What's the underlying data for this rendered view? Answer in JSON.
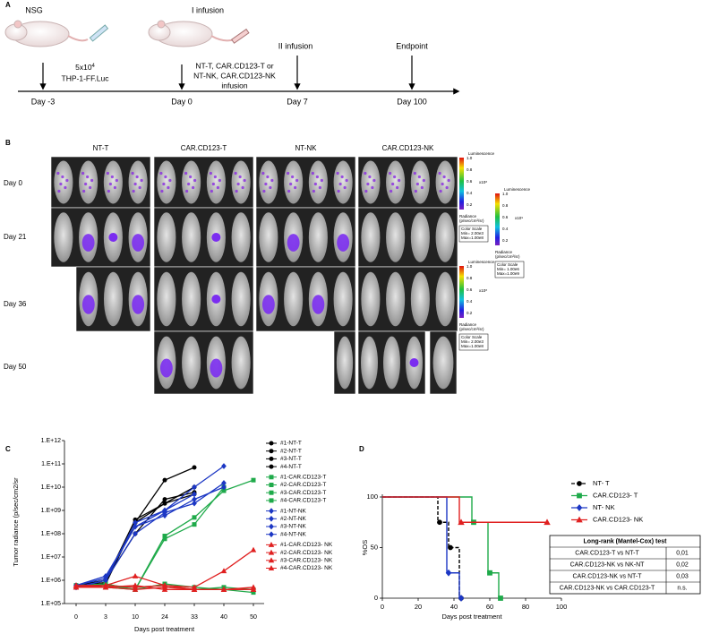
{
  "panel_labels": [
    "A",
    "B",
    "C",
    "D"
  ],
  "timeline": {
    "events": [
      {
        "top": "NSG",
        "day": "Day -3",
        "note": [
          "5x10",
          "4",
          "THP-1-FF.Luc"
        ]
      },
      {
        "top": "I infusion",
        "day": "Day 0",
        "note": [
          "NT-T, CAR.CD123-T or",
          "NT-NK, CAR.CD123-NK",
          "infusion"
        ]
      },
      {
        "top": "II infusion",
        "day": "Day 7"
      },
      {
        "top": "Endpoint",
        "day": "Day 100"
      }
    ]
  },
  "imaging": {
    "columns": [
      "NT-T",
      "CAR.CD123-T",
      "NT-NK",
      "CAR.CD123-NK"
    ],
    "rows": [
      "Day 0",
      "Day 21",
      "Day 36",
      "Day 50"
    ],
    "scales": [
      {
        "title": "Luminescence",
        "ticks": [
          "1.0",
          "0.8",
          "0.6",
          "0.4",
          "0.2"
        ],
        "exp": "x10⁸",
        "unit": [
          "Radiance",
          "(p/sec/cm²/sr)"
        ],
        "box": [
          "Color Scale",
          "Min= 2.00e3",
          "Max=1.00e8"
        ]
      },
      {
        "title": "Luminescence",
        "ticks": [
          "1.0",
          "0.8",
          "0.6",
          "0.4",
          "0.2"
        ],
        "exp": "x10⁹",
        "unit": [
          "Radiance",
          "(p/sec/cm²/sr)"
        ],
        "box": [
          "Color Scale",
          "Min= 1.00e6",
          "Max=1.00e9"
        ]
      },
      {
        "title": "Luminescence",
        "ticks": [
          "1.0",
          "0.8",
          "0.6",
          "0.4",
          "0.2"
        ],
        "exp": "x10⁸",
        "unit": [
          "Radiance",
          "(p/sec/cm²/sr)"
        ],
        "box": [
          "Color Scale",
          "Min= 2.00e3",
          "Max=1.00e8"
        ]
      }
    ]
  },
  "chart_data": [
    {
      "type": "line",
      "ylabel": "Tumor radiance (p/sec/cm2/sr",
      "xlabel": "Days post treatment",
      "categories": [
        "0",
        "3",
        "10",
        "24",
        "33",
        "40",
        "50"
      ],
      "log_y": true,
      "ylim": [
        100000,
        1000000000000
      ],
      "yticks": [
        {
          "value": 1000000000000,
          "label": "1.E+12"
        },
        {
          "value": 100000000000,
          "label": "1.E+11"
        },
        {
          "value": 10000000000,
          "label": "1.E+10"
        },
        {
          "value": 1000000000,
          "label": "1.E+09"
        },
        {
          "value": 100000000,
          "label": "1.E+08"
        },
        {
          "value": 10000000,
          "label": "1.E+07"
        },
        {
          "value": 1000000,
          "label": "1.E+06"
        },
        {
          "value": 100000,
          "label": "1.E+05"
        }
      ],
      "series": [
        {
          "name": "#1-NT-T",
          "color": "#000000",
          "marker": "circle",
          "values": [
            600000,
            800000,
            300000000,
            20000000000,
            70000000000,
            null,
            null
          ]
        },
        {
          "name": "#2-NT-T",
          "color": "#000000",
          "marker": "circle",
          "values": [
            500000,
            1000000,
            100000000,
            3000000000,
            6000000000,
            null,
            null
          ]
        },
        {
          "name": "#3-NT-T",
          "color": "#000000",
          "marker": "circle",
          "values": [
            500000,
            700000,
            300000000,
            2000000000,
            10000000000,
            null,
            null
          ]
        },
        {
          "name": "#4-NT-T",
          "color": "#000000",
          "marker": "circle",
          "values": [
            600000,
            1000000,
            400000000,
            2000000000,
            5000000000,
            null,
            null
          ]
        },
        {
          "name": "#1-CAR.CD123-T",
          "color": "#1faa4a",
          "marker": "square",
          "values": [
            600000,
            700000,
            400000,
            80000000,
            500000000,
            7000000000,
            20000000000
          ]
        },
        {
          "name": "#2-CAR.CD123-T",
          "color": "#1faa4a",
          "marker": "square",
          "values": [
            500000,
            600000,
            400000,
            60000000,
            250000000,
            10000000000,
            null
          ]
        },
        {
          "name": "#3-CAR.CD123-T",
          "color": "#1faa4a",
          "marker": "square",
          "values": [
            600000,
            500000,
            400000,
            700000,
            500000,
            400000,
            300000
          ]
        },
        {
          "name": "#4-CAR.CD123-T",
          "color": "#1faa4a",
          "marker": "square",
          "values": [
            500000,
            600000,
            500000,
            600000,
            400000,
            500000,
            400000
          ]
        },
        {
          "name": "#1-NT-NK",
          "color": "#1c37c4",
          "marker": "diamond",
          "values": [
            500000,
            1000000,
            300000000,
            1000000000,
            10000000000,
            80000000000,
            null
          ]
        },
        {
          "name": "#2-NT-NK",
          "color": "#1c37c4",
          "marker": "diamond",
          "values": [
            600000,
            1500000,
            200000000,
            600000000,
            3000000000,
            10000000000,
            null
          ]
        },
        {
          "name": "#3-NT-NK",
          "color": "#1c37c4",
          "marker": "diamond",
          "values": [
            500000,
            1000000,
            100000000,
            800000000,
            2000000000,
            15000000000,
            null
          ]
        },
        {
          "name": "#4-NT-NK",
          "color": "#1c37c4",
          "marker": "diamond",
          "values": [
            600000,
            1200000,
            200000000,
            1000000000,
            5000000000,
            null,
            null
          ]
        },
        {
          "name": "#1-CAR.CD123- NK",
          "color": "#e02020",
          "marker": "triangle",
          "values": [
            500000,
            600000,
            1500000,
            600000,
            500000,
            2500000,
            20000000
          ]
        },
        {
          "name": "#2-CAR.CD123- NK",
          "color": "#e02020",
          "marker": "triangle",
          "values": [
            600000,
            500000,
            400000,
            500000,
            400000,
            400000,
            500000
          ]
        },
        {
          "name": "#3-CAR.CD123- NK",
          "color": "#e02020",
          "marker": "triangle",
          "values": [
            500000,
            500000,
            600000,
            400000,
            400000,
            400000,
            400000
          ]
        },
        {
          "name": "#4-CAR.CD123- NK",
          "color": "#e02020",
          "marker": "triangle",
          "values": [
            600000,
            600000,
            500000,
            600000,
            400000,
            400000,
            400000
          ]
        }
      ]
    },
    {
      "type": "step",
      "ylabel": "%OS",
      "xlabel": "Days post treatment",
      "xlim": [
        0,
        100
      ],
      "xticks": [
        0,
        20,
        40,
        60,
        80,
        100
      ],
      "ylim": [
        0,
        100
      ],
      "yticks": [
        0,
        50,
        100
      ],
      "series": [
        {
          "name": "NT- T",
          "color": "#000000",
          "marker": "circle",
          "dash": true,
          "x": [
            0,
            31,
            37,
            43
          ],
          "values": [
            100,
            75,
            50,
            0
          ]
        },
        {
          "name": "CAR.CD123- T",
          "color": "#1faa4a",
          "marker": "square",
          "x": [
            0,
            50,
            59,
            65
          ],
          "values": [
            100,
            75,
            25,
            0
          ]
        },
        {
          "name": "NT- NK",
          "color": "#1c37c4",
          "marker": "diamond",
          "x": [
            0,
            36,
            43
          ],
          "values": [
            100,
            25,
            0
          ]
        },
        {
          "name": "CAR.CD123- NK",
          "color": "#e02020",
          "marker": "triangle",
          "x": [
            0,
            43,
            91
          ],
          "values": [
            100,
            75,
            75
          ]
        }
      ],
      "table": {
        "title": "Long-rank (Mantel-Cox) test",
        "rows": [
          [
            "CAR.CD123-T vs NT-T",
            "0,01"
          ],
          [
            "CAR.CD123-NK vs NK-NT",
            "0,02"
          ],
          [
            "CAR.CD123-NK vs NT-T",
            "0,03"
          ],
          [
            "CAR.CD123-NK vs CAR.CD123-T",
            "n.s."
          ]
        ]
      }
    }
  ]
}
